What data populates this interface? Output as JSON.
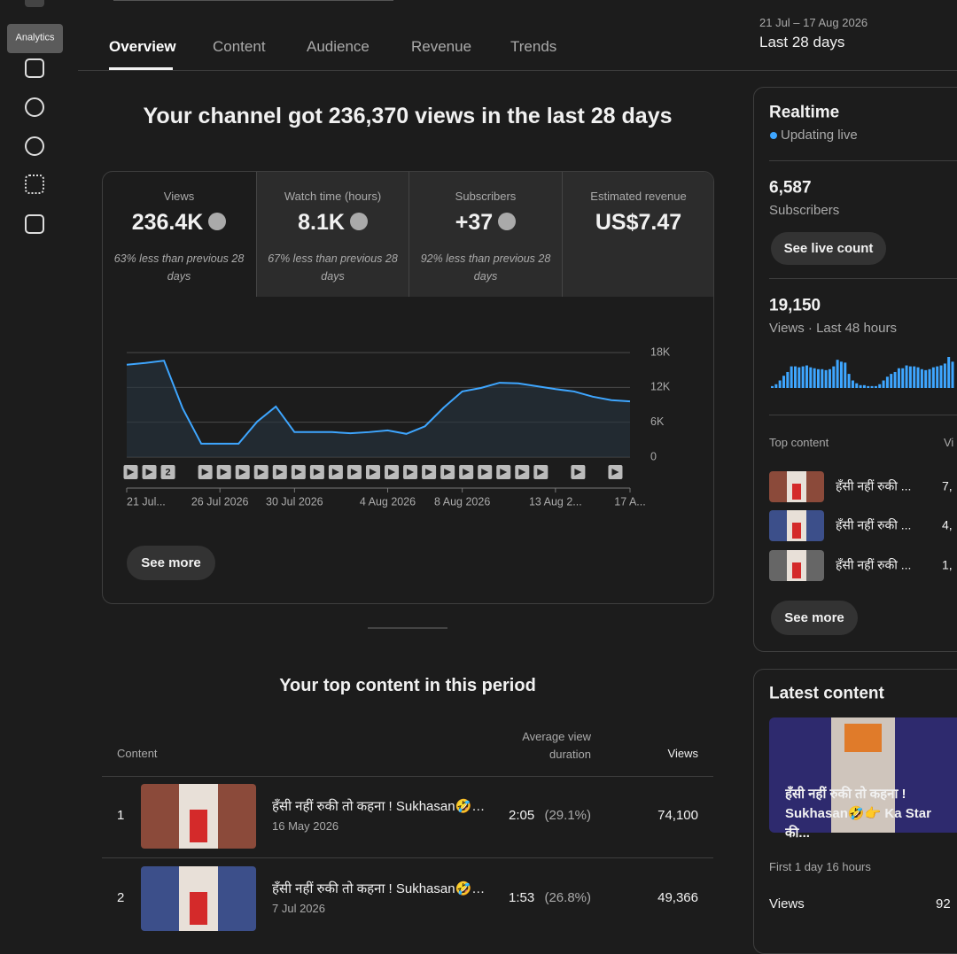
{
  "sidebar": {
    "tooltip": "Analytics"
  },
  "tabs": [
    "Overview",
    "Content",
    "Audience",
    "Revenue",
    "Trends"
  ],
  "date_range": {
    "range": "21 Jul – 17 Aug 2026",
    "label": "Last 28 days"
  },
  "headline": "Your channel got 236,370 views in the last 28 days",
  "metrics": [
    {
      "label": "Views",
      "value": "236.4K",
      "compare": "63% less than previous 28 days"
    },
    {
      "label": "Watch time (hours)",
      "value": "8.1K",
      "compare": "67% less than previous 28 days"
    },
    {
      "label": "Subscribers",
      "value": "+37",
      "compare": "92% less than previous 28 days"
    },
    {
      "label": "Estimated revenue",
      "value": "US$7.47"
    }
  ],
  "chart_data": [
    {
      "type": "line",
      "color": "#3ea6ff",
      "categories": [
        "21 Jul...",
        null,
        null,
        null,
        null,
        "26 Jul 2026",
        null,
        null,
        null,
        "30 Jul 2026",
        null,
        null,
        null,
        null,
        "4 Aug 2026",
        null,
        null,
        null,
        "8 Aug 2026",
        null,
        null,
        null,
        null,
        "13 Aug 2...",
        null,
        null,
        null,
        "17 A..."
      ],
      "values": [
        15900,
        16200,
        16600,
        8400,
        2300,
        2300,
        2300,
        6100,
        8700,
        4300,
        4300,
        4300,
        4100,
        4300,
        4600,
        4000,
        5300,
        8500,
        11300,
        11900,
        12800,
        12700,
        12200,
        11700,
        11300,
        10400,
        9800,
        9600
      ],
      "ylim": [
        0,
        18000
      ],
      "yticks": [
        0,
        {
          "value": 6000,
          "label": "6K"
        },
        {
          "value": 12000,
          "label": "12K"
        },
        {
          "value": 18000,
          "label": "18K"
        }
      ],
      "grid": true,
      "marker_badge": "2"
    },
    {
      "type": "bar",
      "color": "#3ea6ff",
      "values": [
        40,
        80,
        160,
        260,
        340,
        460,
        460,
        440,
        460,
        480,
        440,
        420,
        400,
        400,
        380,
        400,
        460,
        600,
        560,
        540,
        300,
        160,
        100,
        60,
        60,
        40,
        40,
        40,
        80,
        160,
        240,
        300,
        340,
        420,
        420,
        480,
        460,
        460,
        440,
        400,
        380,
        400,
        440,
        460,
        480,
        520,
        660,
        560
      ]
    }
  ],
  "see_more": "See more",
  "top_content": {
    "title": "Your top content in this period",
    "header": {
      "content": "Content",
      "avg_duration": "Average view duration",
      "views": "Views"
    },
    "rows": [
      {
        "rank": "1",
        "title": "हँसी नहीं रुकी तो कहना ! Sukhasan🤣…",
        "date": "16 May 2026",
        "duration": "2:05",
        "percent": "(29.1%)",
        "views": "74,100"
      },
      {
        "rank": "2",
        "title": "हँसी नहीं रुकी तो कहना ! Sukhasan🤣…",
        "date": "7 Jul 2026",
        "duration": "1:53",
        "percent": "(26.8%)",
        "views": "49,366"
      }
    ]
  },
  "realtime": {
    "title": "Realtime",
    "status": "Updating live",
    "subscribers": "6,587",
    "subscribers_label": "Subscribers",
    "live_button": "See live count",
    "views": "19,150",
    "views_label": "Views · Last 48 hours",
    "top_content_label": "Top content",
    "views_header": "Vi",
    "items": [
      {
        "title": "हँसी नहीं रुकी ...",
        "views": "7,"
      },
      {
        "title": "हँसी नहीं रुकी ...",
        "views": "4,"
      },
      {
        "title": "हँसी नहीं रुकी ...",
        "views": "1,"
      }
    ],
    "see_more": "See more"
  },
  "latest_content": {
    "title": "Latest content",
    "video_title": "हँसी नहीं रुकी तो कहना ! Sukhasan🤣👉 Ka Star की...",
    "period": "First 1 day 16 hours",
    "views_label": "Views",
    "views": "92"
  }
}
